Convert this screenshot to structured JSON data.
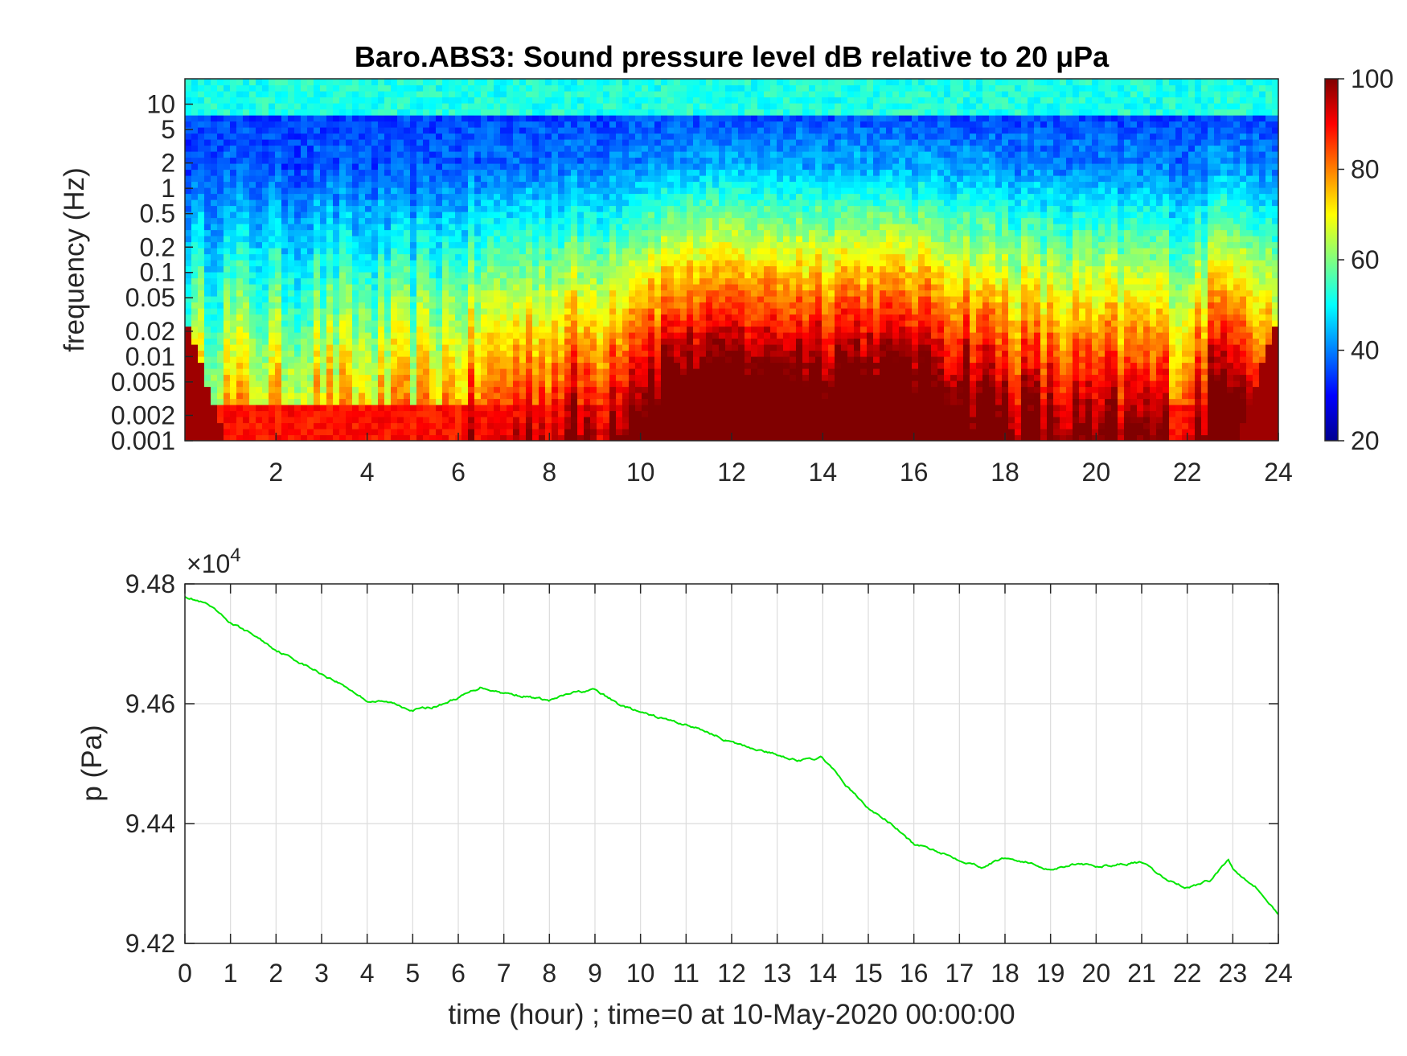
{
  "chart_data": [
    {
      "type": "heatmap",
      "title": "Baro.ABS3: Sound pressure level dB relative to 20 μPa",
      "ylabel": "frequency (Hz)",
      "xlabel": "",
      "x_ticks": [
        2,
        4,
        6,
        8,
        10,
        12,
        14,
        16,
        18,
        20,
        22,
        24
      ],
      "x_tick_labels": [
        "2",
        "4",
        "6",
        "8",
        "10",
        "12",
        "14",
        "16",
        "18",
        "20",
        "22",
        "24"
      ],
      "xlim": [
        0,
        24
      ],
      "y_scale": "log",
      "ylim": [
        0.001,
        20
      ],
      "y_ticks": [
        0.001,
        0.002,
        0.005,
        0.01,
        0.02,
        0.05,
        0.1,
        0.2,
        0.5,
        1,
        2,
        5,
        10
      ],
      "y_tick_labels": [
        "0.001",
        "0.002",
        "0.005",
        "0.01",
        "0.02",
        "0.05",
        "0.1",
        "0.2",
        "0.5",
        "1",
        "2",
        "5",
        "10"
      ],
      "colormap": "jet",
      "colorbar": {
        "ticks": [
          20,
          40,
          60,
          80,
          100
        ],
        "tick_labels": [
          "20",
          "40",
          "60",
          "80",
          "100"
        ],
        "range": [
          20,
          100
        ]
      },
      "activity_profile": {
        "x": [
          0,
          1,
          2,
          3,
          4,
          5,
          6,
          7,
          8,
          9,
          10,
          11,
          12,
          13,
          14,
          15,
          16,
          17,
          18,
          19,
          20,
          21,
          22,
          23,
          24
        ],
        "relative_level": [
          0.2,
          0.25,
          0.2,
          0.25,
          0.22,
          0.25,
          0.35,
          0.45,
          0.55,
          0.55,
          0.8,
          0.95,
          1.0,
          0.95,
          0.95,
          1.0,
          0.95,
          0.85,
          0.7,
          0.6,
          0.55,
          0.6,
          0.5,
          0.95,
          0.5
        ]
      }
    },
    {
      "type": "line",
      "title": "",
      "xlabel": "time (hour) ; time=0 at 10-May-2020 00:00:00",
      "ylabel": "p (Pa)",
      "y_exponent_label": "×10",
      "y_exponent_power": "4",
      "xlim": [
        0,
        24
      ],
      "ylim": [
        94200,
        94800
      ],
      "x_ticks": [
        0,
        1,
        2,
        3,
        4,
        5,
        6,
        7,
        8,
        9,
        10,
        11,
        12,
        13,
        14,
        15,
        16,
        17,
        18,
        19,
        20,
        21,
        22,
        23,
        24
      ],
      "x_tick_labels": [
        "0",
        "1",
        "2",
        "3",
        "4",
        "5",
        "6",
        "7",
        "8",
        "9",
        "10",
        "11",
        "12",
        "13",
        "14",
        "15",
        "16",
        "17",
        "18",
        "19",
        "20",
        "21",
        "22",
        "23",
        "24"
      ],
      "y_ticks": [
        94200,
        94400,
        94600,
        94800
      ],
      "y_tick_labels": [
        "9.42",
        "9.44",
        "9.46",
        "9.48"
      ],
      "grid": true,
      "series_color": "#00e600",
      "x": [
        0,
        0.5,
        1,
        1.5,
        2,
        2.5,
        3,
        3.5,
        4,
        4.5,
        5,
        5.5,
        6,
        6.5,
        7,
        7.5,
        8,
        8.5,
        9,
        9.5,
        10,
        10.5,
        11,
        11.5,
        12,
        12.5,
        13,
        13.5,
        14,
        14.5,
        15,
        15.5,
        16,
        16.5,
        17,
        17.5,
        18,
        18.5,
        19,
        19.5,
        20,
        20.5,
        21,
        21.5,
        22,
        22.5,
        22.9,
        23,
        23.5,
        24
      ],
      "y": [
        94780,
        94765,
        94735,
        94715,
        94690,
        94670,
        94650,
        94630,
        94605,
        94602,
        94590,
        94595,
        94610,
        94628,
        94618,
        94612,
        94605,
        94618,
        94623,
        94600,
        94585,
        94575,
        94565,
        94552,
        94535,
        94525,
        94515,
        94505,
        94510,
        94465,
        94425,
        94400,
        94365,
        94355,
        94340,
        94328,
        94343,
        94335,
        94323,
        94333,
        94328,
        94332,
        94335,
        94308,
        94293,
        94305,
        94340,
        94325,
        94295,
        94248
      ]
    }
  ]
}
